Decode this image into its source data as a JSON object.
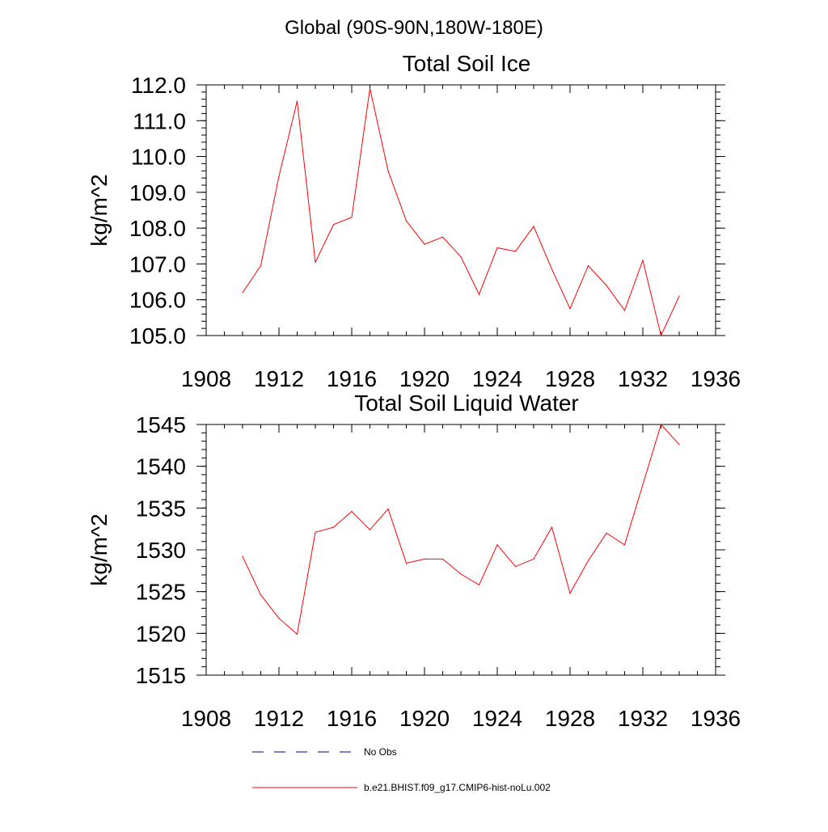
{
  "suptitle": "Global (90S-90N,180W-180E)",
  "colors": {
    "model_line": "#ff0000",
    "obs_line": "#000080",
    "axes": "#000000"
  },
  "chart_data": [
    {
      "type": "line",
      "title": "Total Soil Ice",
      "xlabel": "",
      "ylabel": "kg/m^2",
      "xlim": [
        1908,
        1936
      ],
      "ylim": [
        105.0,
        112.0
      ],
      "xticks": [
        "1908",
        "1912",
        "1916",
        "1920",
        "1924",
        "1928",
        "1932",
        "1936"
      ],
      "yticks": [
        "105.0",
        "106.0",
        "107.0",
        "108.0",
        "109.0",
        "110.0",
        "111.0",
        "112.0"
      ],
      "series": [
        {
          "name": "b.e21.BHIST.f09_g17.CMIP6-hist-noLu.002",
          "x": [
            1910,
            1911,
            1912,
            1913,
            1914,
            1915,
            1916,
            1917,
            1918,
            1919,
            1920,
            1921,
            1922,
            1923,
            1924,
            1925,
            1926,
            1927,
            1928,
            1929,
            1930,
            1931,
            1932,
            1933,
            1934
          ],
          "y": [
            106.2,
            106.95,
            109.45,
            111.55,
            107.05,
            108.1,
            108.3,
            111.9,
            109.6,
            108.2,
            107.55,
            107.75,
            107.2,
            106.15,
            107.45,
            107.35,
            108.05,
            106.85,
            105.75,
            106.95,
            106.4,
            105.7,
            107.1,
            105.0,
            106.1
          ]
        }
      ]
    },
    {
      "type": "line",
      "title": "Total Soil Liquid Water",
      "xlabel": "",
      "ylabel": "kg/m^2",
      "xlim": [
        1908,
        1936
      ],
      "ylim": [
        1515,
        1545
      ],
      "xticks": [
        "1908",
        "1912",
        "1916",
        "1920",
        "1924",
        "1928",
        "1932",
        "1936"
      ],
      "yticks": [
        "1515",
        "1520",
        "1525",
        "1530",
        "1535",
        "1540",
        "1545"
      ],
      "series": [
        {
          "name": "b.e21.BHIST.f09_g17.CMIP6-hist-noLu.002",
          "x": [
            1910,
            1911,
            1912,
            1913,
            1914,
            1915,
            1916,
            1917,
            1918,
            1919,
            1920,
            1921,
            1922,
            1923,
            1924,
            1925,
            1926,
            1927,
            1928,
            1929,
            1930,
            1931,
            1932,
            1933,
            1934
          ],
          "y": [
            1529.2,
            1524.6,
            1521.8,
            1519.9,
            1532.1,
            1532.7,
            1534.6,
            1532.4,
            1534.9,
            1528.4,
            1528.9,
            1528.9,
            1527.1,
            1525.8,
            1530.6,
            1528.0,
            1528.9,
            1532.7,
            1524.8,
            1528.7,
            1532.0,
            1530.6,
            1537.8,
            1545.0,
            1542.6
          ]
        }
      ]
    }
  ],
  "legend": {
    "items": [
      {
        "label": "No Obs",
        "style": "dashed"
      },
      {
        "label": "b.e21.BHIST.f09_g17.CMIP6-hist-noLu.002",
        "style": "solid"
      }
    ]
  }
}
